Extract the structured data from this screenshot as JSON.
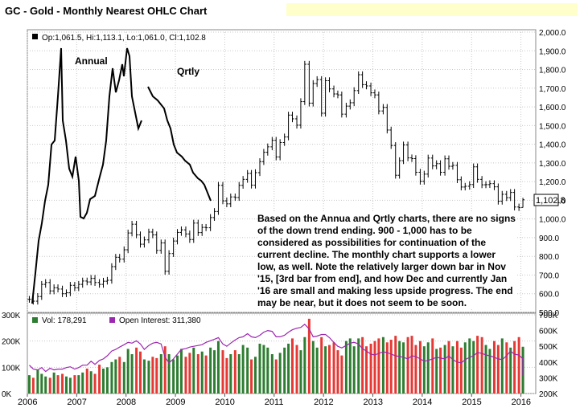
{
  "title": "GC - Gold - Monthly Nearest OHLC Chart",
  "price_legend": "Op:1,061.5, Hi:1,113.1, Lo:1,061.0, Cl:1,102.8",
  "last_price_label": "1,102.8",
  "volume_legend": {
    "vol": "Vol: 178,291",
    "oi": "Open Interest: 311,380"
  },
  "overlay_labels": {
    "annual": "Annual",
    "qrtly": "Qrtly"
  },
  "annotation": "Based on the Annua and Qrtly charts, there are no signs of the down trend ending.  900 - 1,000 has to be considered as possibilities for continuation of the current decline.  The monthly chart supports a lower low, as well.  Note the relatively larger down bar in Nov '15, [3rd bar from end], and how Dec and currently Jan '16 are small and making less upside progress.  The end may be near, but it does not seem to be soon.",
  "colors": {
    "volume_up": "#2e7d32",
    "volume_down": "#e53935",
    "open_interest": "#9c27b0",
    "price": "#000000",
    "grid": "#c8c8c8",
    "legend_vol": "#2e7d32",
    "legend_oi": "#9c27b0"
  },
  "chart_data": [
    {
      "type": "ohlc",
      "title": "GC - Gold - Monthly Nearest OHLC Chart",
      "x_ticks": [
        "2006",
        "2007",
        "2008",
        "2009",
        "2010",
        "2011",
        "2012",
        "2013",
        "2014",
        "2015",
        "2016"
      ],
      "y_ticks": [
        "500.0",
        "600.0",
        "700.0",
        "800.0",
        "900.0",
        "1,000.0",
        "1,100.0",
        "1,200.0",
        "1,300.0",
        "1,400.0",
        "1,500.0",
        "1,600.0",
        "1,700.0",
        "1,800.0",
        "1,900.0",
        "2,000.0"
      ],
      "ylim": [
        500,
        2000
      ],
      "xlim": [
        2006.0,
        2016.3
      ],
      "grid": true,
      "series": [
        {
          "values": [
            {
              "x": 2006.04,
              "c": 570
            },
            {
              "x": 2006.12,
              "c": 560
            },
            {
              "x": 2006.21,
              "c": 585
            },
            {
              "x": 2006.29,
              "c": 650
            },
            {
              "x": 2006.37,
              "c": 660
            },
            {
              "x": 2006.46,
              "c": 615
            },
            {
              "x": 2006.54,
              "c": 632
            },
            {
              "x": 2006.62,
              "c": 625
            },
            {
              "x": 2006.71,
              "c": 600
            },
            {
              "x": 2006.79,
              "c": 605
            },
            {
              "x": 2006.87,
              "c": 645
            },
            {
              "x": 2006.96,
              "c": 632
            },
            {
              "x": 2007.04,
              "c": 650
            },
            {
              "x": 2007.12,
              "c": 668
            },
            {
              "x": 2007.21,
              "c": 663
            },
            {
              "x": 2007.29,
              "c": 682
            },
            {
              "x": 2007.37,
              "c": 660
            },
            {
              "x": 2007.46,
              "c": 650
            },
            {
              "x": 2007.54,
              "c": 667
            },
            {
              "x": 2007.62,
              "c": 672
            },
            {
              "x": 2007.71,
              "c": 745
            },
            {
              "x": 2007.79,
              "c": 795
            },
            {
              "x": 2007.87,
              "c": 785
            },
            {
              "x": 2007.96,
              "c": 835
            },
            {
              "x": 2008.04,
              "c": 925
            },
            {
              "x": 2008.12,
              "c": 972
            },
            {
              "x": 2008.21,
              "c": 915
            },
            {
              "x": 2008.29,
              "c": 865
            },
            {
              "x": 2008.37,
              "c": 888
            },
            {
              "x": 2008.46,
              "c": 930
            },
            {
              "x": 2008.54,
              "c": 915
            },
            {
              "x": 2008.62,
              "c": 832
            },
            {
              "x": 2008.71,
              "c": 872
            },
            {
              "x": 2008.79,
              "c": 720
            },
            {
              "x": 2008.87,
              "c": 815
            },
            {
              "x": 2008.96,
              "c": 882
            },
            {
              "x": 2009.04,
              "c": 928
            },
            {
              "x": 2009.12,
              "c": 942
            },
            {
              "x": 2009.21,
              "c": 920
            },
            {
              "x": 2009.29,
              "c": 890
            },
            {
              "x": 2009.37,
              "c": 978
            },
            {
              "x": 2009.46,
              "c": 927
            },
            {
              "x": 2009.54,
              "c": 955
            },
            {
              "x": 2009.62,
              "c": 953
            },
            {
              "x": 2009.71,
              "c": 1008
            },
            {
              "x": 2009.79,
              "c": 1040
            },
            {
              "x": 2009.87,
              "c": 1180
            },
            {
              "x": 2009.96,
              "c": 1097
            },
            {
              "x": 2010.04,
              "c": 1081
            },
            {
              "x": 2010.12,
              "c": 1118
            },
            {
              "x": 2010.21,
              "c": 1115
            },
            {
              "x": 2010.29,
              "c": 1180
            },
            {
              "x": 2010.37,
              "c": 1212
            },
            {
              "x": 2010.46,
              "c": 1244
            },
            {
              "x": 2010.54,
              "c": 1181
            },
            {
              "x": 2010.62,
              "c": 1248
            },
            {
              "x": 2010.71,
              "c": 1307
            },
            {
              "x": 2010.79,
              "c": 1357
            },
            {
              "x": 2010.87,
              "c": 1386
            },
            {
              "x": 2010.96,
              "c": 1421
            },
            {
              "x": 2011.04,
              "c": 1332
            },
            {
              "x": 2011.12,
              "c": 1409
            },
            {
              "x": 2011.21,
              "c": 1439
            },
            {
              "x": 2011.29,
              "c": 1556
            },
            {
              "x": 2011.37,
              "c": 1536
            },
            {
              "x": 2011.46,
              "c": 1502
            },
            {
              "x": 2011.54,
              "c": 1628
            },
            {
              "x": 2011.62,
              "c": 1828
            },
            {
              "x": 2011.71,
              "c": 1620
            },
            {
              "x": 2011.79,
              "c": 1725
            },
            {
              "x": 2011.87,
              "c": 1746
            },
            {
              "x": 2011.96,
              "c": 1566
            },
            {
              "x": 2012.04,
              "c": 1740
            },
            {
              "x": 2012.12,
              "c": 1696
            },
            {
              "x": 2012.21,
              "c": 1669
            },
            {
              "x": 2012.29,
              "c": 1664
            },
            {
              "x": 2012.37,
              "c": 1561
            },
            {
              "x": 2012.46,
              "c": 1604
            },
            {
              "x": 2012.54,
              "c": 1622
            },
            {
              "x": 2012.62,
              "c": 1687
            },
            {
              "x": 2012.71,
              "c": 1772
            },
            {
              "x": 2012.79,
              "c": 1719
            },
            {
              "x": 2012.87,
              "c": 1712
            },
            {
              "x": 2012.96,
              "c": 1675
            },
            {
              "x": 2013.04,
              "c": 1664
            },
            {
              "x": 2013.12,
              "c": 1578
            },
            {
              "x": 2013.21,
              "c": 1597
            },
            {
              "x": 2013.29,
              "c": 1476
            },
            {
              "x": 2013.37,
              "c": 1393
            },
            {
              "x": 2013.46,
              "c": 1234
            },
            {
              "x": 2013.54,
              "c": 1312
            },
            {
              "x": 2013.62,
              "c": 1396
            },
            {
              "x": 2013.71,
              "c": 1327
            },
            {
              "x": 2013.79,
              "c": 1323
            },
            {
              "x": 2013.87,
              "c": 1250
            },
            {
              "x": 2013.96,
              "c": 1202
            },
            {
              "x": 2014.04,
              "c": 1240
            },
            {
              "x": 2014.12,
              "c": 1326
            },
            {
              "x": 2014.21,
              "c": 1284
            },
            {
              "x": 2014.29,
              "c": 1296
            },
            {
              "x": 2014.37,
              "c": 1250
            },
            {
              "x": 2014.46,
              "c": 1322
            },
            {
              "x": 2014.54,
              "c": 1282
            },
            {
              "x": 2014.62,
              "c": 1287
            },
            {
              "x": 2014.71,
              "c": 1210
            },
            {
              "x": 2014.79,
              "c": 1171
            },
            {
              "x": 2014.87,
              "c": 1175
            },
            {
              "x": 2014.96,
              "c": 1184
            },
            {
              "x": 2015.04,
              "c": 1279
            },
            {
              "x": 2015.12,
              "c": 1212
            },
            {
              "x": 2015.21,
              "c": 1183
            },
            {
              "x": 2015.29,
              "c": 1184
            },
            {
              "x": 2015.37,
              "c": 1189
            },
            {
              "x": 2015.46,
              "c": 1172
            },
            {
              "x": 2015.54,
              "c": 1095
            },
            {
              "x": 2015.62,
              "c": 1132
            },
            {
              "x": 2015.71,
              "c": 1114
            },
            {
              "x": 2015.79,
              "c": 1142
            },
            {
              "x": 2015.87,
              "c": 1064
            },
            {
              "x": 2015.96,
              "c": 1061
            },
            {
              "x": 2016.04,
              "o": 1061.5,
              "h": 1113.1,
              "l": 1061.0,
              "c": 1102.8
            }
          ]
        }
      ]
    },
    {
      "type": "bar",
      "title": "Volume / Open Interest",
      "left_ticks": [
        "0K",
        "100K",
        "200K",
        "300K"
      ],
      "right_ticks": [
        "200K",
        "300K",
        "400K",
        "500K",
        "600K",
        "700K"
      ],
      "xlim": [
        2006.0,
        2016.3
      ],
      "series": [
        {
          "name": "Vol",
          "values": [
            70,
            60,
            90,
            75,
            65,
            60,
            80,
            70,
            75,
            65,
            60,
            70,
            70,
            80,
            95,
            85,
            75,
            110,
            95,
            100,
            120,
            130,
            140,
            120,
            170,
            150,
            175,
            160,
            130,
            125,
            140,
            135,
            150,
            180,
            150,
            130,
            145,
            170,
            140,
            155,
            175,
            150,
            160,
            145,
            175,
            165,
            200,
            165,
            135,
            150,
            165,
            150,
            185,
            175,
            130,
            140,
            190,
            185,
            175,
            150,
            130,
            155,
            175,
            190,
            210,
            185,
            165,
            215,
            285,
            200,
            175,
            215,
            180,
            185,
            195,
            165,
            145,
            200,
            210,
            180,
            210,
            215,
            180,
            190,
            200,
            210,
            215,
            195,
            205,
            220,
            200,
            195,
            215,
            220,
            185,
            200,
            180,
            195,
            210,
            170,
            175,
            185,
            200,
            180,
            200,
            175,
            195,
            210,
            200,
            220,
            215,
            185,
            170,
            200,
            185,
            210,
            195,
            175,
            200,
            215,
            170,
            175,
            178.291
          ]
        },
        {
          "name": "Open Interest",
          "values": [
            380,
            355,
            350,
            365,
            340,
            360,
            350,
            355,
            355,
            365,
            370,
            355,
            365,
            380,
            380,
            405,
            385,
            410,
            420,
            440,
            470,
            480,
            495,
            510,
            525,
            520,
            535,
            515,
            480,
            505,
            520,
            525,
            515,
            430,
            395,
            420,
            450,
            480,
            485,
            495,
            500,
            505,
            510,
            525,
            535,
            545,
            555,
            515,
            500,
            520,
            540,
            555,
            560,
            580,
            560,
            555,
            570,
            590,
            600,
            595,
            560,
            560,
            570,
            590,
            605,
            615,
            620,
            640,
            610,
            560,
            565,
            575,
            575,
            555,
            525,
            500,
            490,
            505,
            520,
            525,
            515,
            485,
            470,
            450,
            445,
            455,
            465,
            460,
            450,
            440,
            435,
            430,
            420,
            440,
            435,
            420,
            405,
            410,
            420,
            430,
            425,
            420,
            440,
            415,
            400,
            395,
            415,
            430,
            440,
            460,
            455,
            445,
            440,
            430,
            420,
            415,
            440,
            470,
            450,
            445,
            420,
            400,
            311.38
          ]
        }
      ]
    }
  ]
}
